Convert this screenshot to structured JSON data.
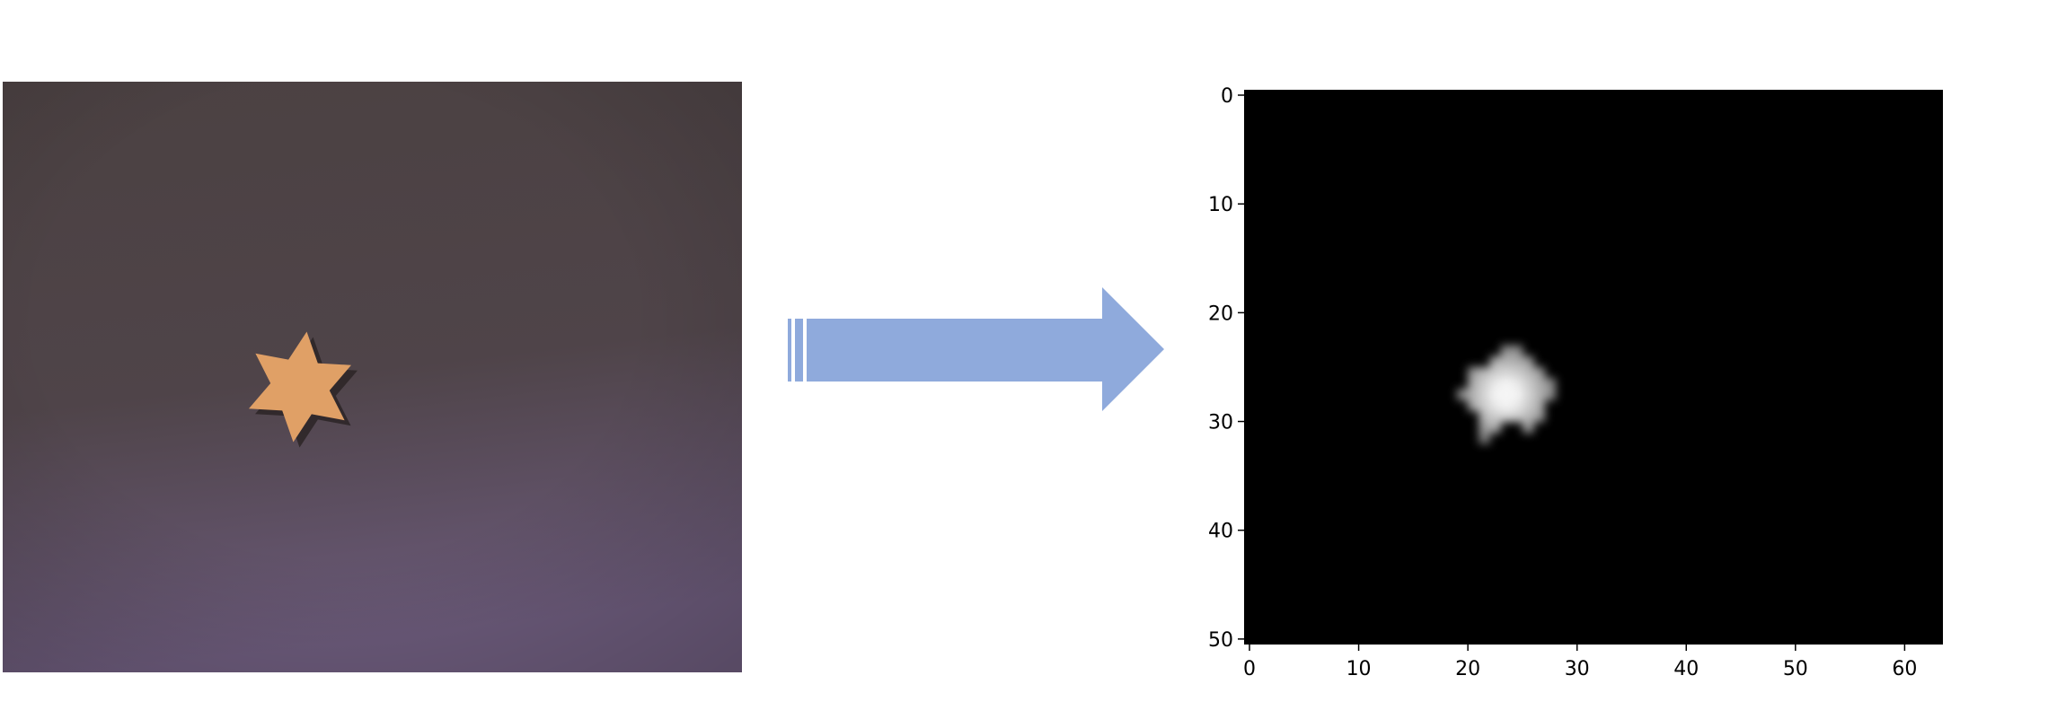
{
  "photo": {
    "subject": "orange six-pointed star on dark purple-gray background",
    "background_color_top": "#4b4142",
    "background_color_bottom": "#6b5a7a",
    "star_color": "#e0a066",
    "star_shadow_color": "#2c2426"
  },
  "arrow": {
    "color": "#8faadc",
    "direction": "right",
    "icon": "striped-right-arrow-icon"
  },
  "chart_data": {
    "type": "heatmap",
    "colormap": "gray",
    "background_value": 0,
    "blob_value": 1,
    "blob_center": [
      24,
      28
    ],
    "xlim": [
      0,
      64
    ],
    "ylim": [
      51,
      0
    ],
    "xticks": [
      "0",
      "10",
      "20",
      "30",
      "40",
      "50",
      "60"
    ],
    "yticks": [
      "0",
      "10",
      "20",
      "30",
      "40",
      "50"
    ],
    "title": "",
    "xlabel": "",
    "ylabel": ""
  }
}
